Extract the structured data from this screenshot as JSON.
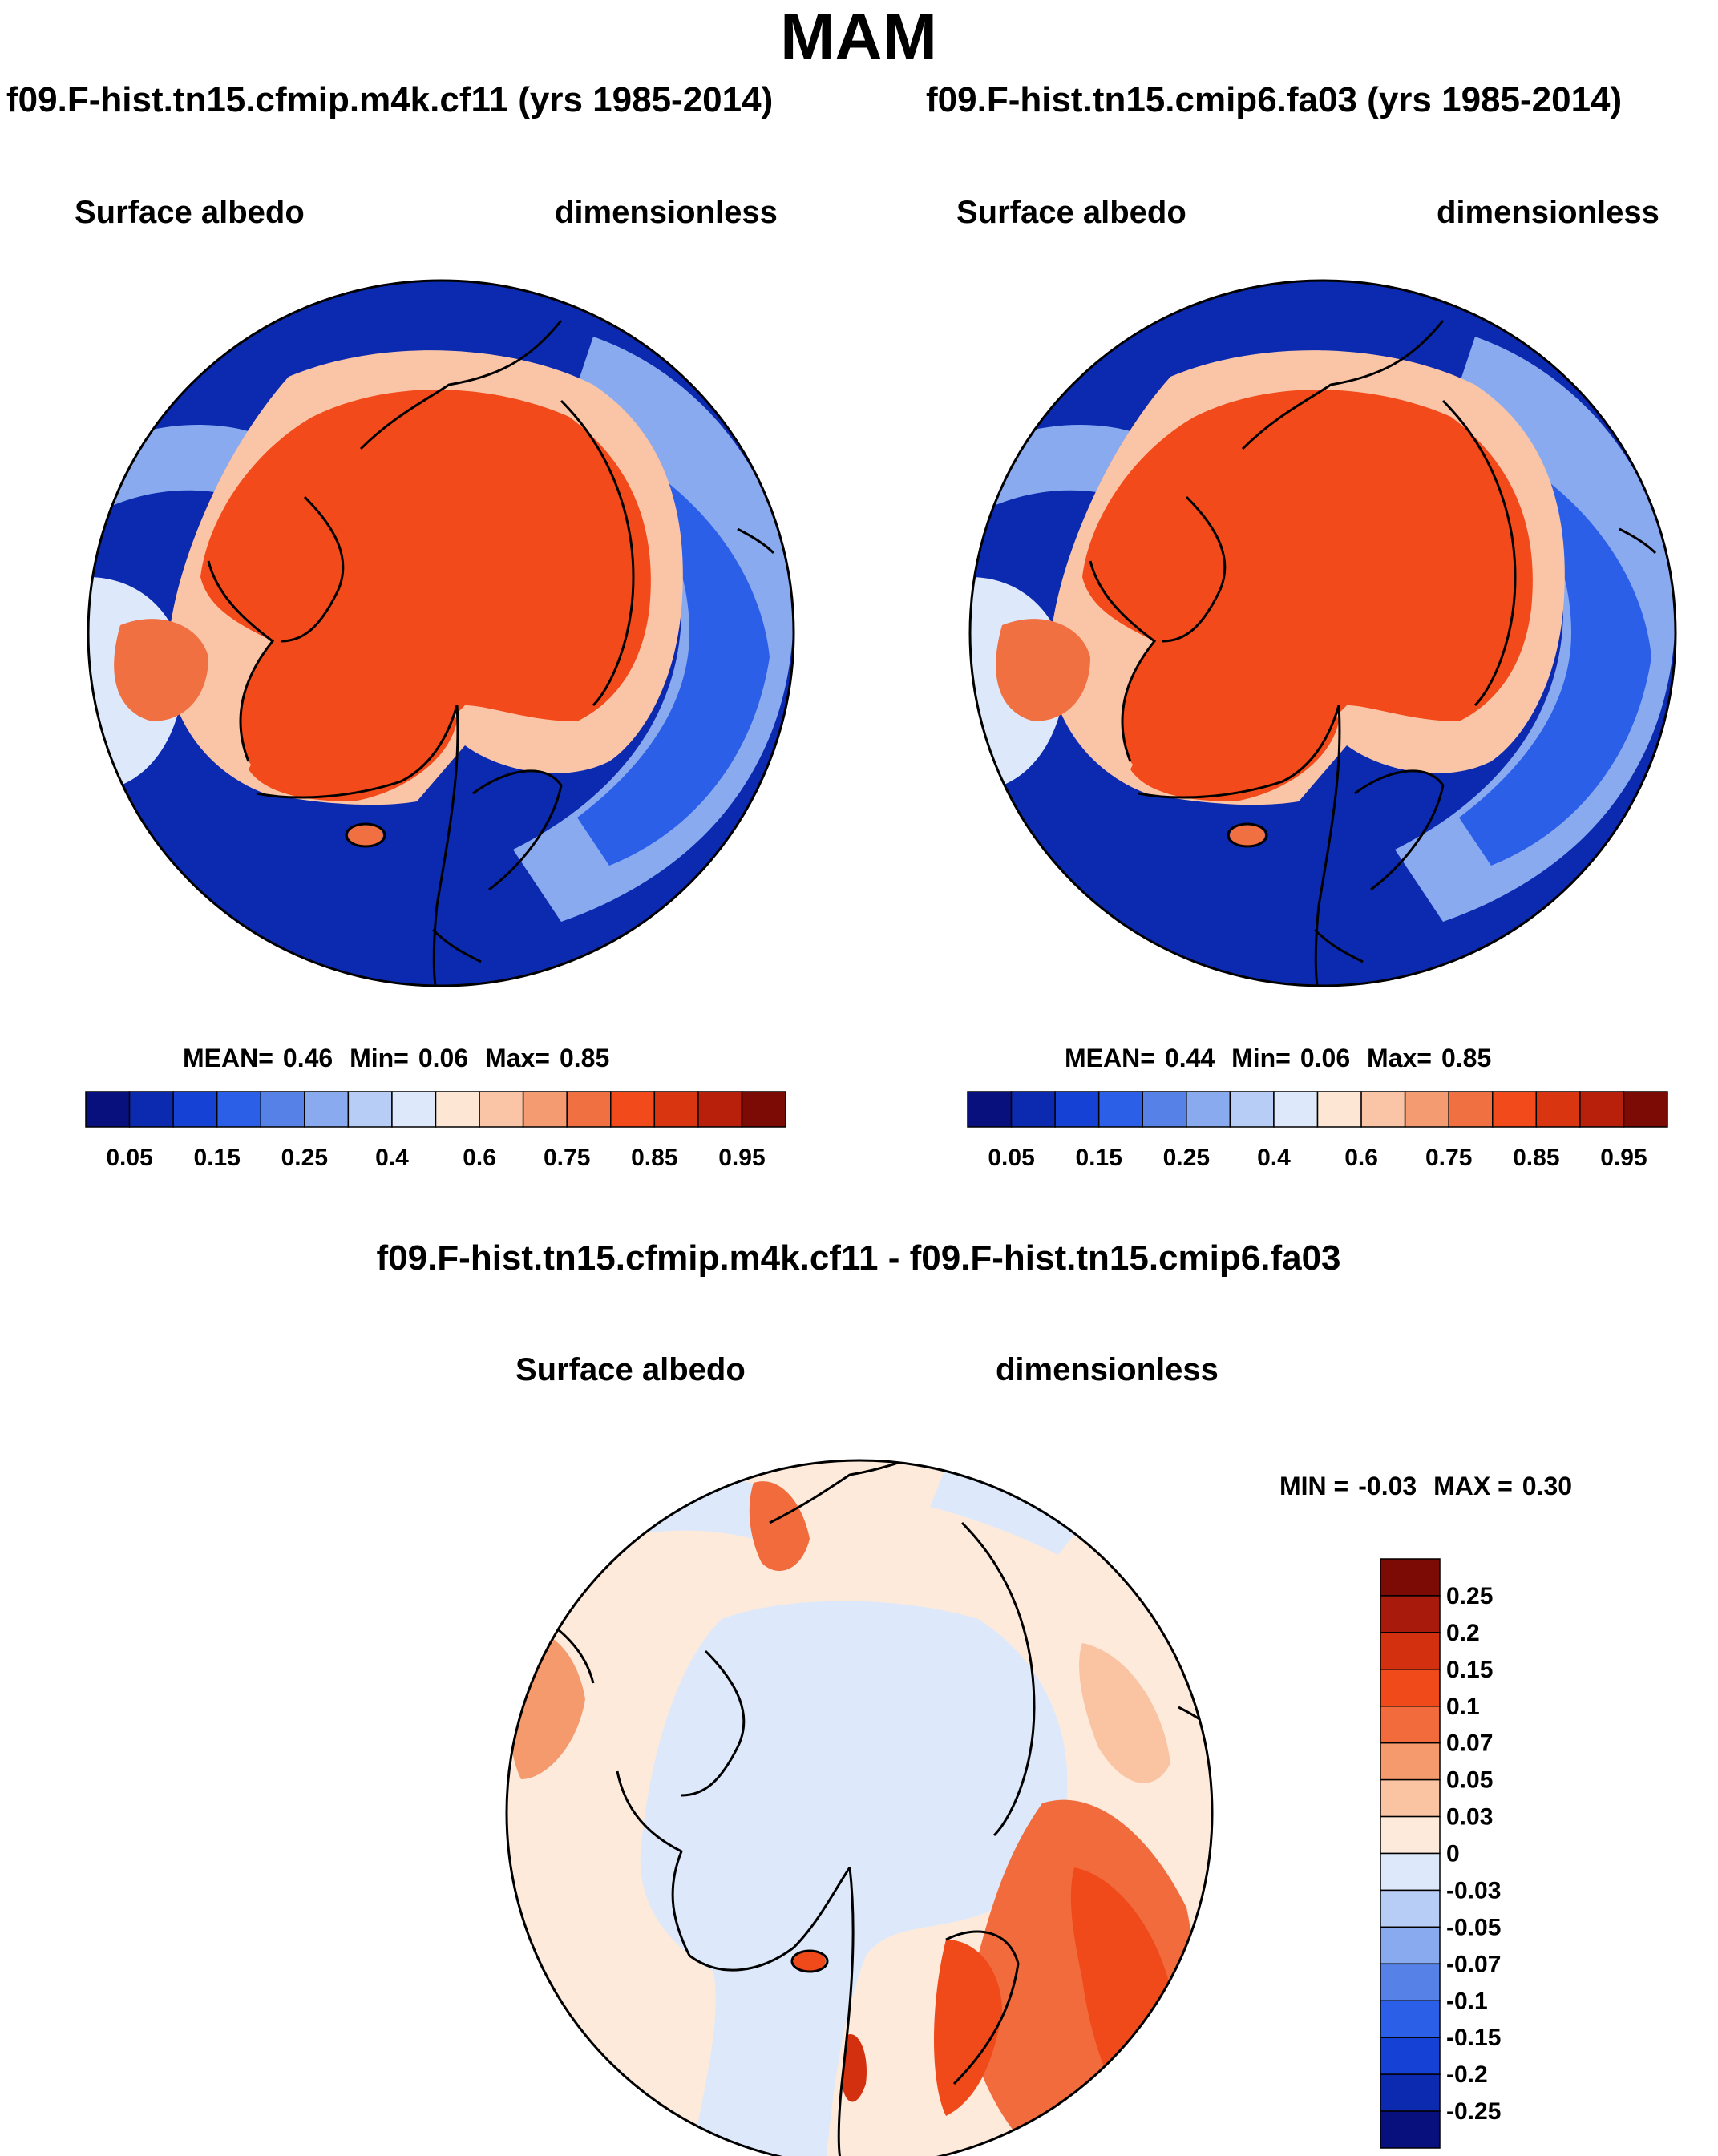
{
  "title": "MAM",
  "panels": [
    {
      "case": "f09.F-hist.tn15.cfmip.m4k.cf11 (yrs 1985-2014)",
      "variable": "Surface albedo",
      "units": "dimensionless",
      "stats": {
        "mean_label": "MEAN=",
        "mean": "0.46",
        "min_label": "Min=",
        "min": "0.06",
        "max_label": "Max=",
        "max": "0.85"
      }
    },
    {
      "case": "f09.F-hist.tn15.cmip6.fa03 (yrs 1985-2014)",
      "variable": "Surface albedo",
      "units": "dimensionless",
      "stats": {
        "mean_label": "MEAN=",
        "mean": "0.44",
        "min_label": "Min=",
        "min": "0.06",
        "max_label": "Max=",
        "max": "0.85"
      }
    }
  ],
  "colorbar_main": {
    "colors": [
      "#08107e",
      "#0b2ab0",
      "#1541d4",
      "#2b5fe8",
      "#5681e6",
      "#8aaaf0",
      "#b8cdf6",
      "#dde9fa",
      "#fde6d4",
      "#fac5a6",
      "#f59b72",
      "#f07042",
      "#f24a1a",
      "#d93510",
      "#b8200c",
      "#7c0a05"
    ],
    "ticks": [
      "0.05",
      "0.15",
      "0.25",
      "0.4",
      "0.6",
      "0.75",
      "0.85",
      "0.95"
    ]
  },
  "difference": {
    "title": "f09.F-hist.tn15.cfmip.m4k.cf11 - f09.F-hist.tn15.cmip6.fa03",
    "variable": "Surface albedo",
    "units": "dimensionless",
    "min_label": "MIN =",
    "min": "-0.03",
    "max_label": "MAX =",
    "max": "0.30",
    "colorbar": {
      "colors": [
        "#7c0a05",
        "#a81a0b",
        "#d2300e",
        "#f04a1b",
        "#f26b3c",
        "#f59a6c",
        "#fac3a2",
        "#fdeadb",
        "#dde9fa",
        "#b8cdf6",
        "#8aaaf0",
        "#5681e6",
        "#2b5fe8",
        "#1541d4",
        "#0b2ab0",
        "#08107e"
      ],
      "ticks": [
        "0.25",
        "0.2",
        "0.15",
        "0.1",
        "0.07",
        "0.05",
        "0.03",
        "0",
        "-0.03",
        "-0.05",
        "-0.07",
        "-0.1",
        "-0.15",
        "-0.2",
        "-0.25"
      ]
    }
  }
}
